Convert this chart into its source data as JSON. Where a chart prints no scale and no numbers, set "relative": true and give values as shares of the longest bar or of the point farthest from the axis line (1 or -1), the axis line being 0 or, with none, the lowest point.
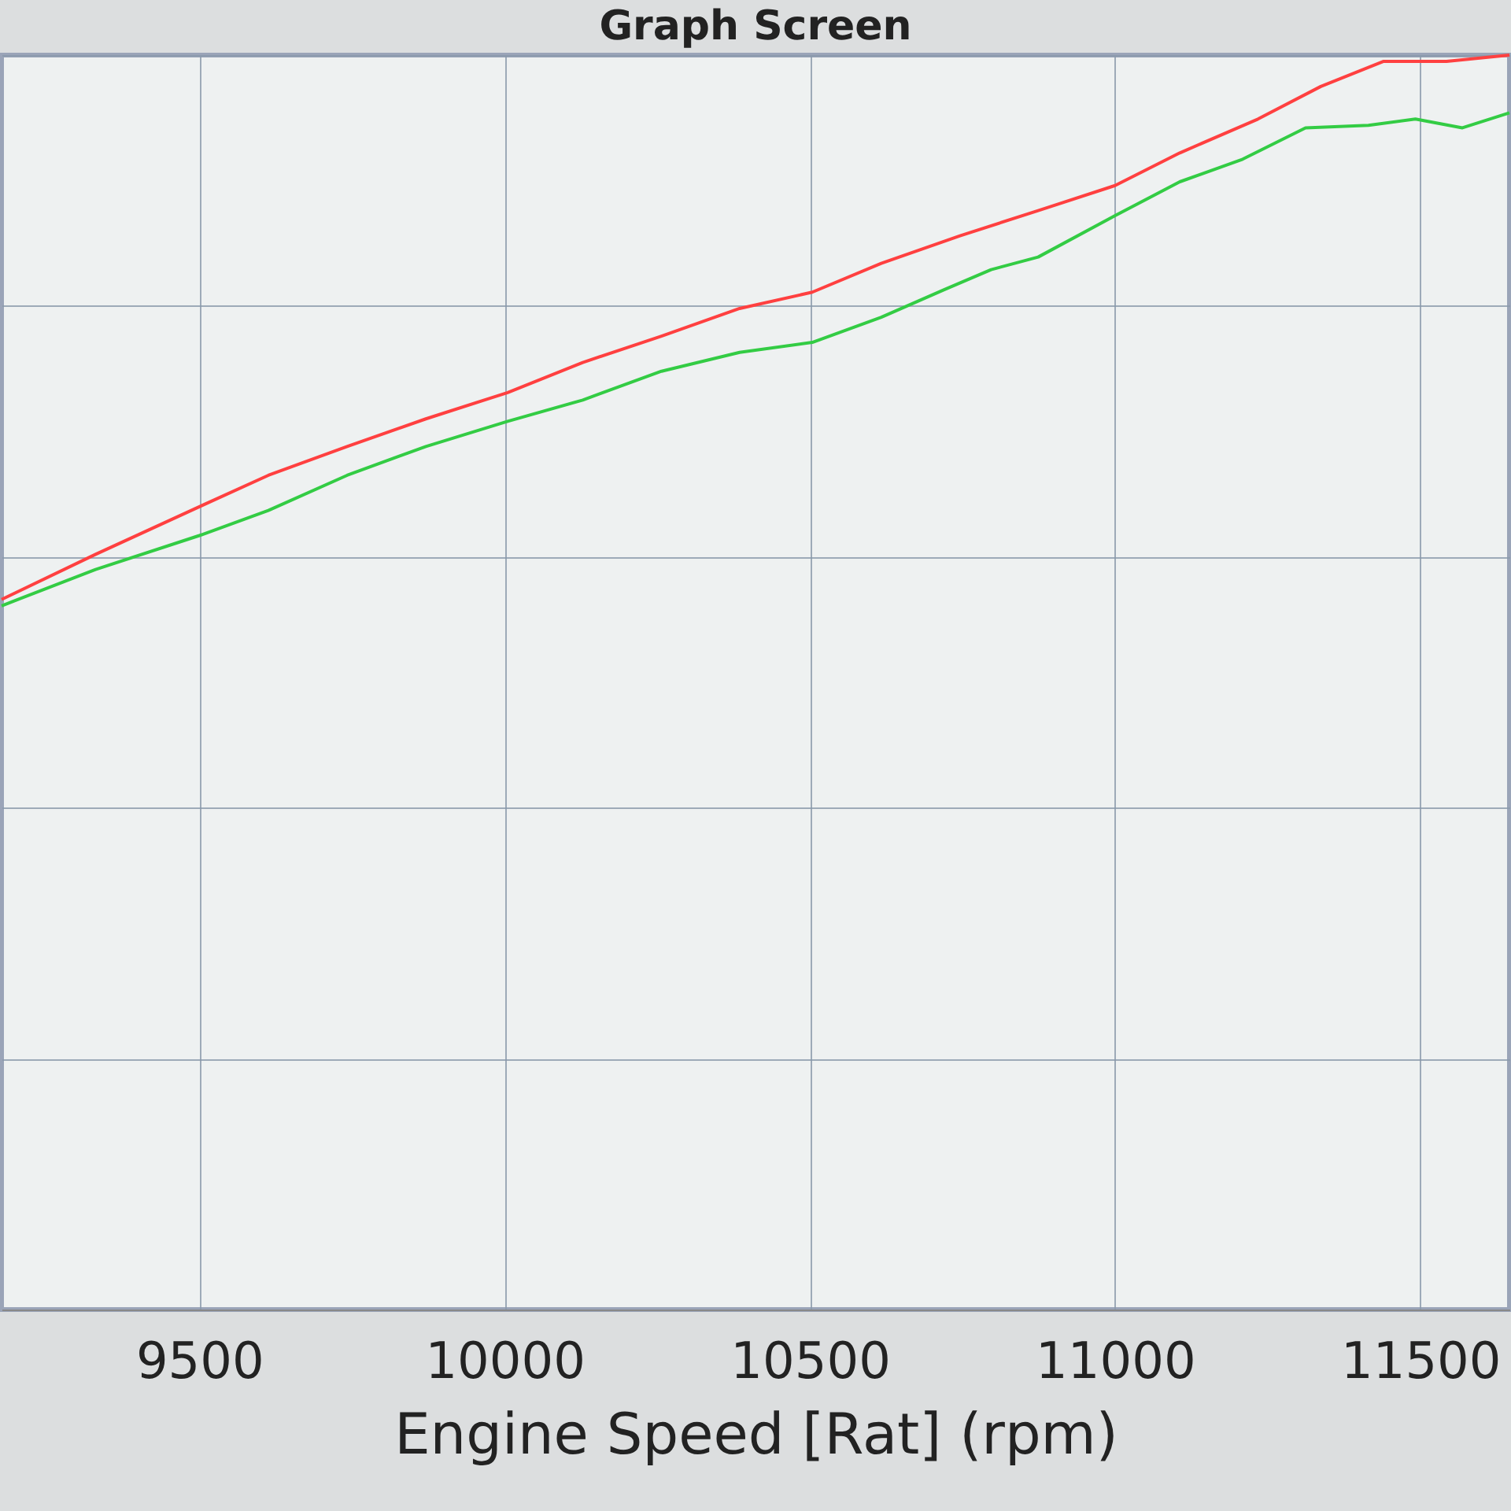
{
  "chart_data": {
    "type": "line",
    "title": "Graph Screen",
    "xlabel": "Engine Speed [Rat] (rpm)",
    "relative": true,
    "xlim": [
      9176,
      11646
    ],
    "xticks": [
      9500,
      10000,
      10500,
      11000,
      11500
    ],
    "grid": true,
    "legend": false,
    "series": [
      {
        "color": "#ff4040",
        "x": [
          9176,
          9330,
          9500,
          9613,
          9742,
          9871,
          10005,
          10128,
          10257,
          10385,
          10504,
          10617,
          10746,
          10874,
          11000,
          11106,
          11234,
          11337,
          11440,
          11543,
          11646
        ],
        "values": [
          0.566,
          0.602,
          0.64,
          0.665,
          0.688,
          0.71,
          0.731,
          0.755,
          0.776,
          0.798,
          0.811,
          0.834,
          0.856,
          0.876,
          0.896,
          0.922,
          0.949,
          0.975,
          0.995,
          0.995,
          1.0
        ]
      },
      {
        "color": "#33cc44",
        "x": [
          9176,
          9330,
          9500,
          9613,
          9742,
          9871,
          10005,
          10128,
          10257,
          10385,
          10504,
          10617,
          10720,
          10797,
          10874,
          11000,
          11106,
          11209,
          11312,
          11415,
          11492,
          11569,
          11646
        ],
        "values": [
          0.561,
          0.59,
          0.617,
          0.637,
          0.665,
          0.688,
          0.708,
          0.725,
          0.748,
          0.763,
          0.771,
          0.791,
          0.813,
          0.829,
          0.839,
          0.872,
          0.899,
          0.917,
          0.942,
          0.944,
          0.949,
          0.942,
          0.954
        ]
      }
    ]
  }
}
